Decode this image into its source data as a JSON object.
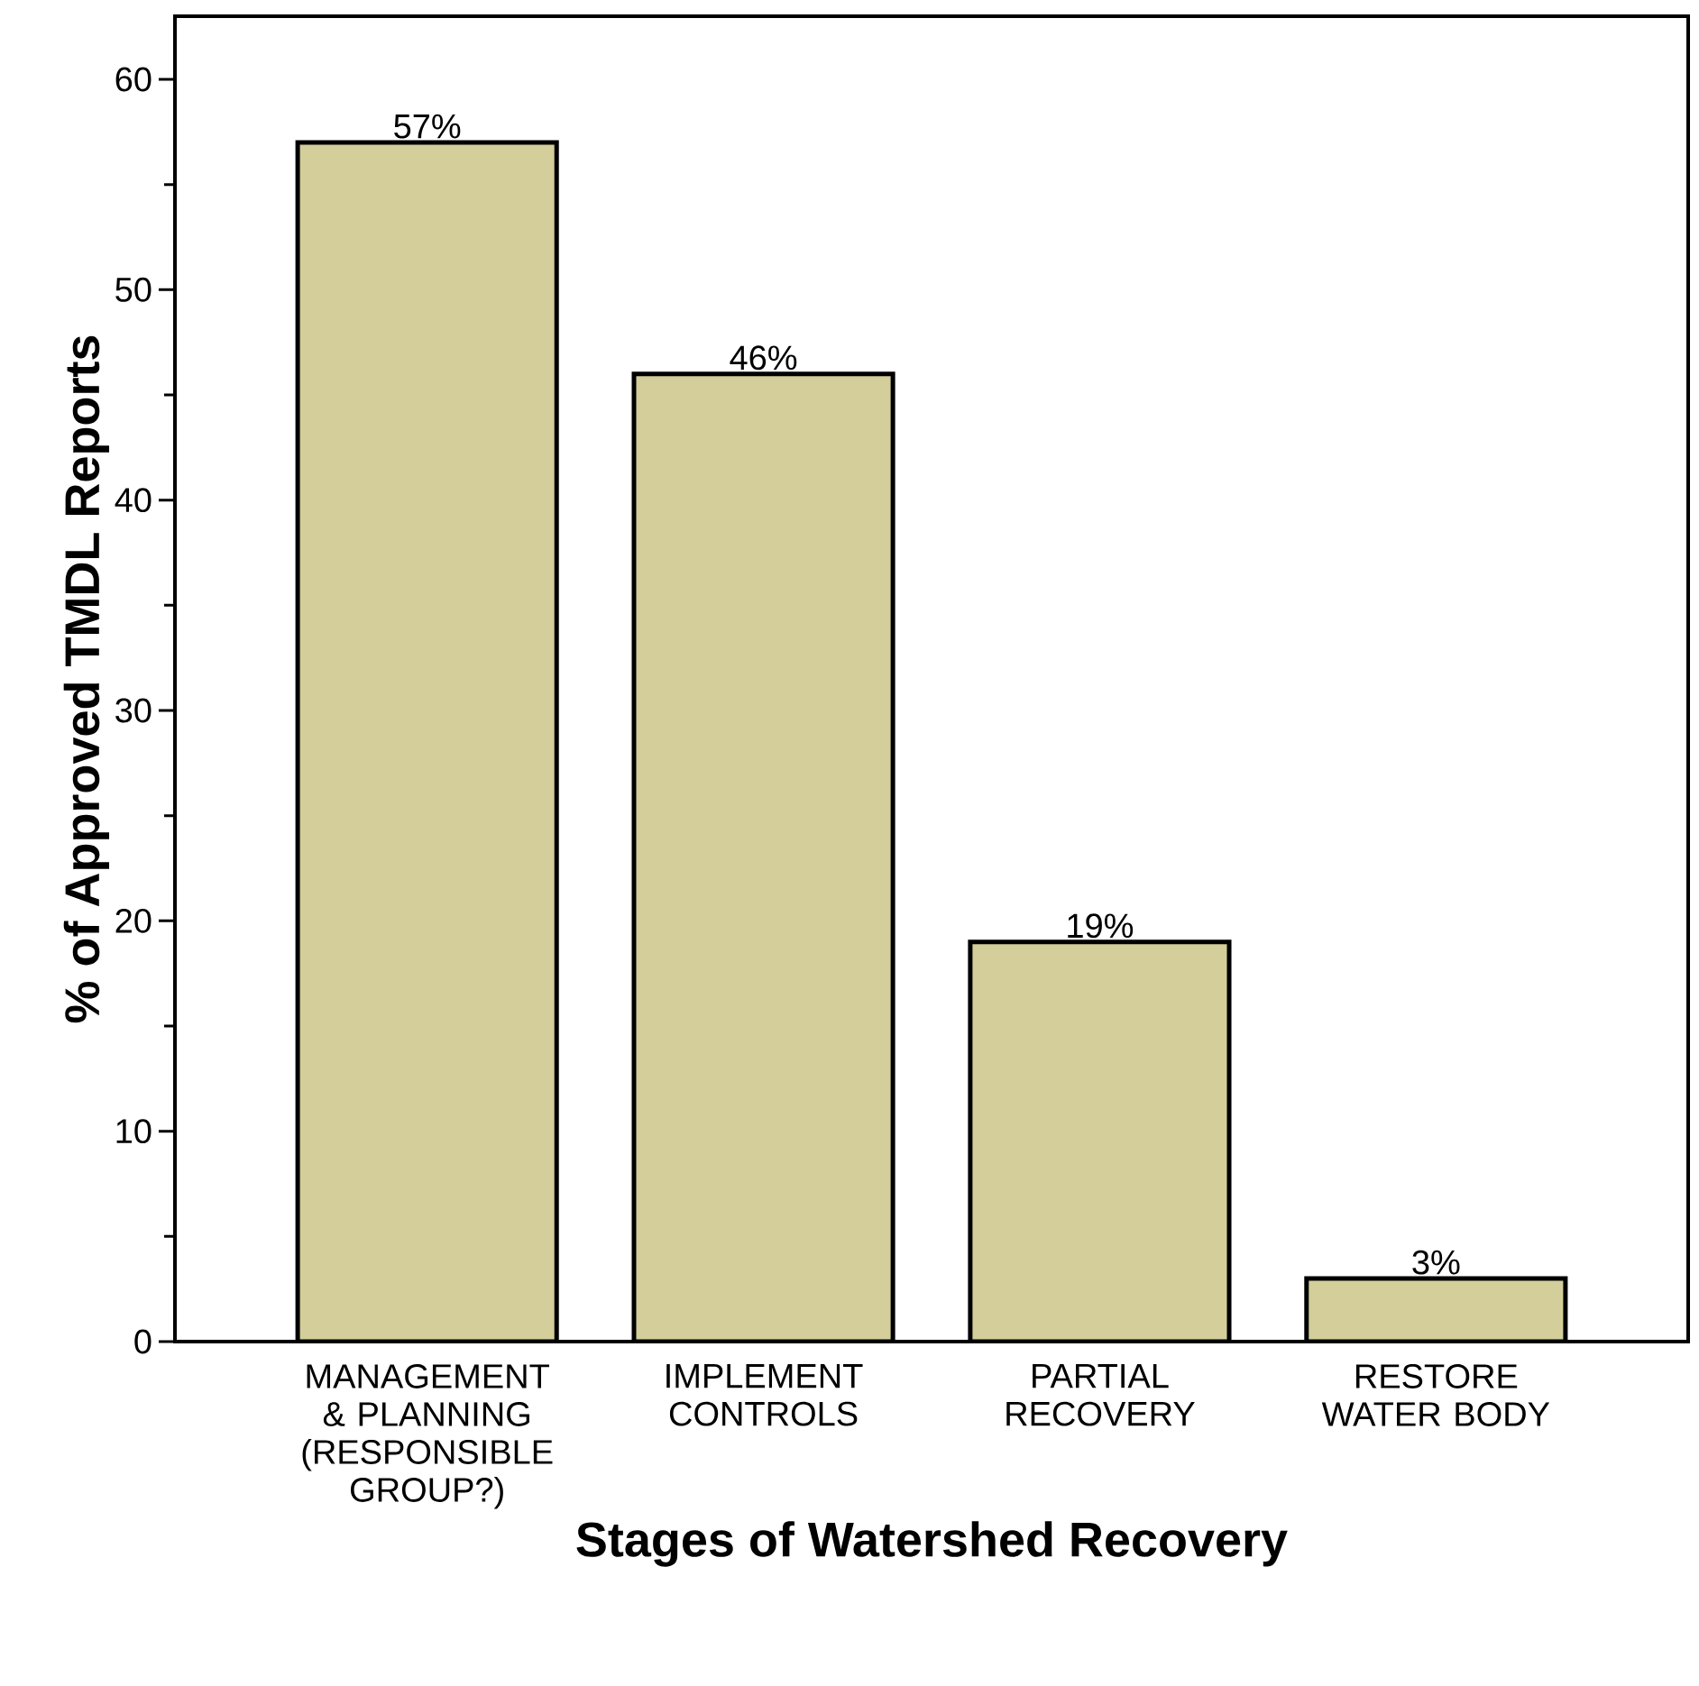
{
  "chart_data": {
    "type": "bar",
    "xlabel": "Stages of Watershed Recovery",
    "ylabel": "% of Approved TMDL Reports",
    "categories": [
      "MANAGEMENT & PLANNING (RESPONSIBLE GROUP?)",
      "IMPLEMENT CONTROLS",
      "PARTIAL RECOVERY",
      "RESTORE WATER BODY"
    ],
    "values": [
      57,
      46,
      19,
      3
    ],
    "value_labels": [
      "57%",
      "46%",
      "19%",
      "3%"
    ],
    "color": "#d3ce9a",
    "ylim": [
      0,
      63
    ],
    "yticks": [
      0,
      10,
      20,
      30,
      40,
      50,
      60
    ]
  }
}
